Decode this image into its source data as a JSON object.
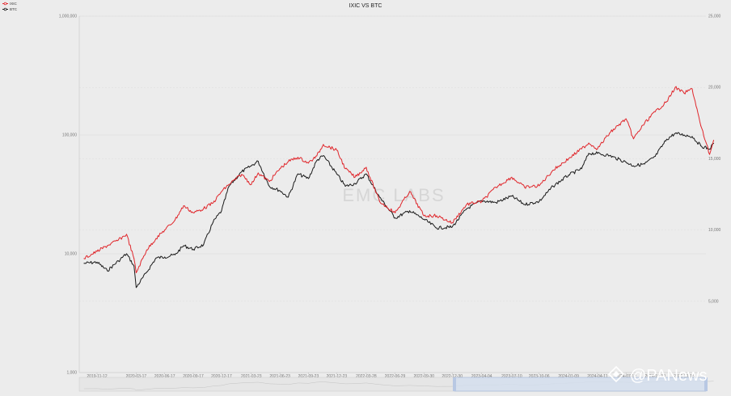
{
  "chart_data": {
    "type": "line",
    "title": "IXIC VS BTC",
    "watermark": "EMC LABS",
    "brand": "@PANews",
    "legend": {
      "position": "top-left",
      "entries": [
        "IXIC",
        "BTC"
      ]
    },
    "colors": {
      "IXIC": "#e0262b",
      "BTC": "#1a1a1a",
      "background": "#ececec",
      "grid": "#d8d8d8",
      "slider_selection": "#d3deef"
    },
    "x_ticks": [
      "2019-11-12",
      "2020-03-17",
      "2020-06-17",
      "2020-09-17",
      "2020-12-17",
      "2021-03-23",
      "2021-06-23",
      "2021-09-23",
      "2021-12-23",
      "2022-03-28",
      "2022-06-29",
      "2022-09-30",
      "2022-12-30",
      "2023-04-04",
      "2023-07-10",
      "2023-10-06",
      "2024-01-09",
      "2024-04-11",
      "2024-07-12",
      "2024-10-14",
      "2025-01-15"
    ],
    "y_left": {
      "scale": "log",
      "ticks": [
        "1,000",
        "10,000",
        "100,000",
        "1,000,000"
      ],
      "range": [
        1000,
        1000000
      ]
    },
    "y_right": {
      "scale": "linear",
      "ticks": [
        "5,000",
        "10,000",
        "15,000",
        "20,000",
        "25,000"
      ],
      "range": [
        0,
        25000
      ]
    },
    "grid": true,
    "series": [
      {
        "name": "BTC",
        "axis": "left",
        "x": [
          "2019-10-01",
          "2019-11-12",
          "2019-12-15",
          "2020-01-20",
          "2020-02-15",
          "2020-03-10",
          "2020-03-17",
          "2020-04-20",
          "2020-05-20",
          "2020-06-17",
          "2020-07-20",
          "2020-08-17",
          "2020-09-17",
          "2020-10-20",
          "2020-11-20",
          "2020-12-17",
          "2021-01-10",
          "2021-02-20",
          "2021-03-23",
          "2021-04-14",
          "2021-05-20",
          "2021-06-23",
          "2021-07-20",
          "2021-08-20",
          "2021-09-23",
          "2021-10-20",
          "2021-11-10",
          "2021-12-23",
          "2022-01-20",
          "2022-02-20",
          "2022-03-28",
          "2022-05-10",
          "2022-06-29",
          "2022-08-15",
          "2022-09-30",
          "2022-11-10",
          "2022-12-30",
          "2023-02-15",
          "2023-04-04",
          "2023-05-20",
          "2023-07-10",
          "2023-08-20",
          "2023-10-06",
          "2023-11-20",
          "2024-01-09",
          "2024-02-20",
          "2024-03-14",
          "2024-04-11",
          "2024-05-20",
          "2024-07-12",
          "2024-08-05",
          "2024-09-10",
          "2024-10-14",
          "2024-11-20",
          "2024-12-17",
          "2025-01-15",
          "2025-02-10",
          "2025-03-10",
          "2025-04-07",
          "2025-04-20"
        ],
        "values": [
          8300,
          8500,
          7200,
          8700,
          10000,
          7900,
          5200,
          7000,
          9200,
          9400,
          9800,
          11700,
          10900,
          11900,
          18500,
          23000,
          37000,
          49000,
          55000,
          60000,
          37000,
          34000,
          30000,
          47000,
          43000,
          61000,
          67000,
          47000,
          37000,
          39000,
          47000,
          30000,
          20000,
          23000,
          19500,
          16500,
          16800,
          24000,
          28000,
          27000,
          30500,
          26000,
          27500,
          37000,
          46000,
          52000,
          70000,
          70000,
          67000,
          59000,
          55000,
          57000,
          66000,
          92000,
          103000,
          100000,
          97000,
          81000,
          76000,
          85000
        ]
      },
      {
        "name": "IXIC",
        "axis": "right",
        "x": [
          "2019-10-01",
          "2019-11-12",
          "2019-12-15",
          "2020-01-20",
          "2020-02-15",
          "2020-03-10",
          "2020-03-17",
          "2020-04-20",
          "2020-05-20",
          "2020-06-17",
          "2020-07-20",
          "2020-08-17",
          "2020-09-17",
          "2020-10-20",
          "2020-11-20",
          "2020-12-17",
          "2021-01-10",
          "2021-02-20",
          "2021-03-23",
          "2021-04-14",
          "2021-05-20",
          "2021-06-23",
          "2021-07-20",
          "2021-08-20",
          "2021-09-23",
          "2021-10-20",
          "2021-11-10",
          "2021-12-23",
          "2022-01-20",
          "2022-02-20",
          "2022-03-28",
          "2022-05-10",
          "2022-06-29",
          "2022-08-15",
          "2022-09-30",
          "2022-11-10",
          "2022-12-30",
          "2023-02-15",
          "2023-04-04",
          "2023-05-20",
          "2023-07-10",
          "2023-08-20",
          "2023-10-06",
          "2023-11-20",
          "2024-01-09",
          "2024-02-20",
          "2024-03-14",
          "2024-04-11",
          "2024-05-20",
          "2024-07-12",
          "2024-08-05",
          "2024-09-10",
          "2024-10-14",
          "2024-11-20",
          "2024-12-17",
          "2025-01-15",
          "2025-02-10",
          "2025-03-10",
          "2025-04-07",
          "2025-04-20"
        ],
        "values": [
          8000,
          8500,
          8900,
          9300,
          9700,
          8000,
          7000,
          8600,
          9400,
          10000,
          10700,
          11700,
          11200,
          11500,
          11900,
          12700,
          13200,
          13900,
          13200,
          14000,
          13400,
          14300,
          14800,
          15100,
          14700,
          15200,
          16000,
          15600,
          14300,
          13700,
          14400,
          12000,
          11200,
          12700,
          11000,
          11000,
          10500,
          11800,
          12000,
          13000,
          13700,
          13000,
          13100,
          14200,
          15000,
          15700,
          16100,
          15700,
          16800,
          17800,
          16400,
          17500,
          18300,
          19000,
          20000,
          19600,
          19900,
          17300,
          15300,
          16300
        ]
      }
    ]
  }
}
